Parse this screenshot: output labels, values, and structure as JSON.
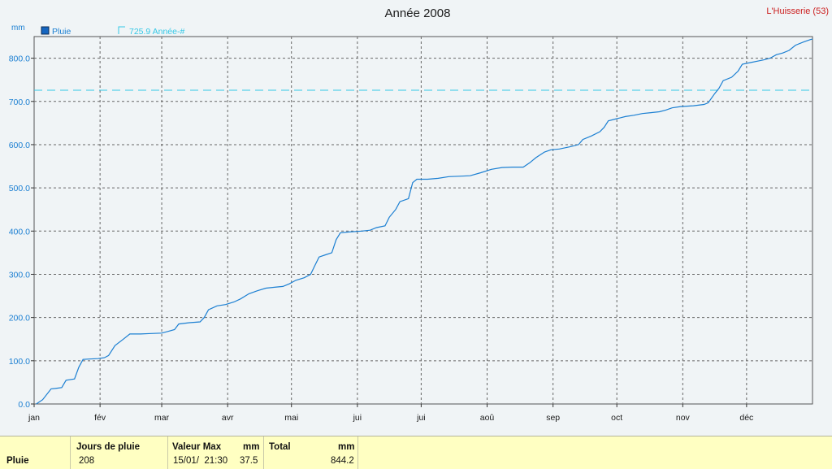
{
  "chart_data": {
    "type": "line",
    "title": "Année 2008",
    "station": "L'Huisserie (53)",
    "ylabel": "mm",
    "ylim": [
      0,
      850
    ],
    "yticks": [
      "0.0",
      "100.0",
      "200.0",
      "300.0",
      "400.0",
      "500.0",
      "600.0",
      "700.0",
      "800.0"
    ],
    "xticks": [
      "jan",
      "fév",
      "mar",
      "avr",
      "mai",
      "jui",
      "jui",
      "aoû",
      "sep",
      "oct",
      "nov",
      "déc"
    ],
    "grid": true,
    "legend_position": "top-left",
    "series": [
      {
        "name": "Pluie",
        "color": "#1b7fd2",
        "points": [
          [
            1,
            0
          ],
          [
            4,
            10
          ],
          [
            8,
            35
          ],
          [
            10,
            36
          ],
          [
            13,
            38
          ],
          [
            15,
            55
          ],
          [
            19,
            58
          ],
          [
            21,
            85
          ],
          [
            23,
            103
          ],
          [
            26,
            104
          ],
          [
            30,
            105
          ],
          [
            33,
            107
          ],
          [
            35,
            112
          ],
          [
            38,
            135
          ],
          [
            42,
            150
          ],
          [
            45,
            162
          ],
          [
            50,
            162
          ],
          [
            55,
            163
          ],
          [
            60,
            164
          ],
          [
            63,
            168
          ],
          [
            66,
            172
          ],
          [
            68,
            185
          ],
          [
            73,
            188
          ],
          [
            78,
            190
          ],
          [
            80,
            200
          ],
          [
            82,
            218
          ],
          [
            86,
            227
          ],
          [
            90,
            230
          ],
          [
            94,
            236
          ],
          [
            97,
            243
          ],
          [
            101,
            255
          ],
          [
            105,
            262
          ],
          [
            109,
            268
          ],
          [
            113,
            270
          ],
          [
            117,
            272
          ],
          [
            120,
            278
          ],
          [
            123,
            286
          ],
          [
            127,
            292
          ],
          [
            130,
            300
          ],
          [
            132,
            320
          ],
          [
            134,
            340
          ],
          [
            137,
            345
          ],
          [
            140,
            350
          ],
          [
            142,
            380
          ],
          [
            144,
            396
          ],
          [
            148,
            398
          ],
          [
            154,
            400
          ],
          [
            158,
            402
          ],
          [
            161,
            408
          ],
          [
            165,
            412
          ],
          [
            167,
            432
          ],
          [
            170,
            450
          ],
          [
            172,
            468
          ],
          [
            176,
            475
          ],
          [
            178,
            512
          ],
          [
            180,
            520
          ],
          [
            185,
            520
          ],
          [
            190,
            522
          ],
          [
            195,
            526
          ],
          [
            200,
            527
          ],
          [
            205,
            528
          ],
          [
            210,
            535
          ],
          [
            215,
            543
          ],
          [
            220,
            547
          ],
          [
            225,
            548
          ],
          [
            230,
            548
          ],
          [
            233,
            558
          ],
          [
            236,
            570
          ],
          [
            240,
            583
          ],
          [
            243,
            588
          ],
          [
            247,
            590
          ],
          [
            252,
            595
          ],
          [
            256,
            600
          ],
          [
            258,
            612
          ],
          [
            262,
            620
          ],
          [
            266,
            630
          ],
          [
            268,
            640
          ],
          [
            270,
            655
          ],
          [
            274,
            660
          ],
          [
            278,
            665
          ],
          [
            282,
            668
          ],
          [
            286,
            672
          ],
          [
            290,
            674
          ],
          [
            294,
            676
          ],
          [
            297,
            680
          ],
          [
            300,
            685
          ],
          [
            304,
            688
          ],
          [
            310,
            690
          ],
          [
            315,
            693
          ],
          [
            317,
            697
          ],
          [
            320,
            718
          ],
          [
            322,
            730
          ],
          [
            324,
            748
          ],
          [
            328,
            756
          ],
          [
            331,
            770
          ],
          [
            333,
            786
          ],
          [
            337,
            790
          ],
          [
            340,
            793
          ],
          [
            343,
            796
          ],
          [
            346,
            800
          ],
          [
            349,
            808
          ],
          [
            352,
            812
          ],
          [
            355,
            818
          ],
          [
            358,
            830
          ],
          [
            362,
            838
          ],
          [
            365,
            843
          ],
          [
            366,
            844.2
          ]
        ]
      }
    ],
    "reference": {
      "label": "725.9 Année-#",
      "value": 725.9,
      "color": "#35c8e6"
    }
  },
  "stats": {
    "row_label": "Pluie",
    "jours_header": "Jours de pluie",
    "jours_value": "208",
    "valmax_header": "Valeur Max",
    "valmax_unit": "mm",
    "valmax_date": "15/01/  21:30",
    "valmax_value": "37.5",
    "total_header": "Total",
    "total_unit": "mm",
    "total_value": "844.2"
  }
}
